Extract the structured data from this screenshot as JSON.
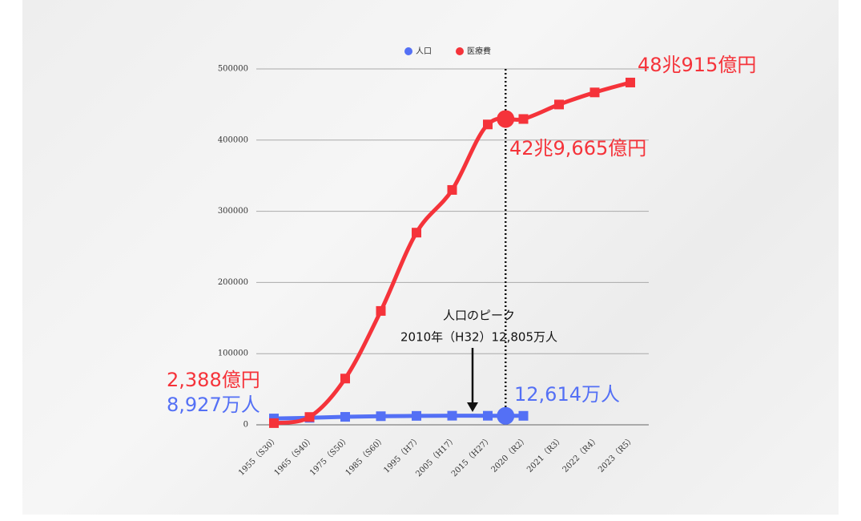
{
  "chart_data": {
    "type": "line",
    "categories": [
      "1955（S30）",
      "1965（S40）",
      "1975（S50）",
      "1985（S60）",
      "1995（H7）",
      "2005（H17）",
      "2015（H27）",
      "2020（R2）",
      "2021（R3）",
      "2022（R4）",
      "2023（R5）"
    ],
    "series": [
      {
        "name": "人口",
        "color": "#5470f5",
        "values": [
          8927,
          9828,
          11194,
          12105,
          12557,
          12777,
          12709,
          12614,
          null,
          null,
          null
        ]
      },
      {
        "name": "医療費",
        "color": "#f5333a",
        "values": [
          2388,
          11000,
          65000,
          160000,
          270000,
          330000,
          422000,
          429665,
          450000,
          467000,
          480915
        ]
      }
    ],
    "ylim": [
      0,
      500000
    ],
    "yticks": [
      0,
      100000,
      200000,
      300000,
      400000,
      500000
    ],
    "grid": true,
    "legend": "top",
    "annotations": {
      "medical_2023": "48兆915億円",
      "medical_2020": "42兆9,665億円",
      "medical_1955": "2,388億円",
      "population_1955": "8,927万人",
      "population_2020": "12,614万人",
      "peak_title": "人口のピーク",
      "peak_detail": "2010年（H32）12,805万人"
    }
  }
}
